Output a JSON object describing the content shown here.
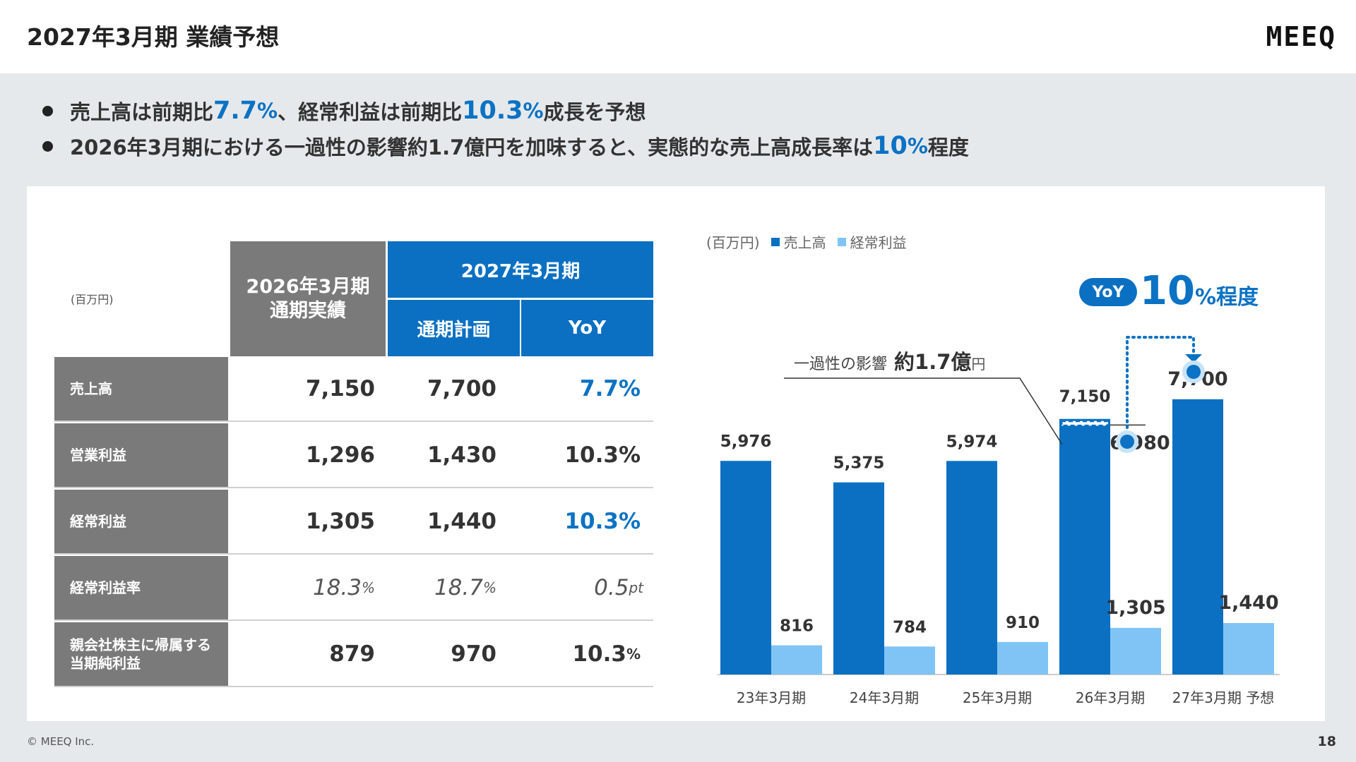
{
  "header": {
    "title": "2027年3月期 業績予想",
    "logo": "MEEQ"
  },
  "bullets": [
    {
      "a": "売上高は前期比",
      "b": "7.7",
      "c": "%",
      "d": " 、経常利益は前期比",
      "e": "10.3",
      "f": "%",
      "g": "成長を予想"
    },
    {
      "a": "2026年3月期における一過性の影響約1.7億円を加味すると、実態的な売上高成長率は",
      "b": "10",
      "c": "%",
      "d": "程度"
    }
  ],
  "table": {
    "unit": "(百万円)",
    "header_2026_l1": "2026年3月期",
    "header_2026_l2": "通期実績",
    "header_2027": "2027年3月期",
    "header_plan": "通期計画",
    "header_yoy": "YoY",
    "rows": [
      {
        "label": "売上高",
        "actual": "7,150",
        "plan": "7,700",
        "yoy": "7.7%"
      },
      {
        "label": "営業利益",
        "actual": "1,296",
        "plan": "1,430",
        "yoy": "10.3%"
      },
      {
        "label": "経常利益",
        "actual": "1,305",
        "plan": "1,440",
        "yoy": "10.3%"
      },
      {
        "label": "経常利益率",
        "actual": "18.3",
        "actual_unit": "%",
        "plan": "18.7",
        "plan_unit": "%",
        "yoy": "0.5",
        "yoy_unit": "pt"
      },
      {
        "label_l1": "親会社株主に帰属する",
        "label_l2": "当期純利益",
        "actual": "879",
        "plan": "970",
        "yoy": "10.3",
        "yoy_unit": "%"
      }
    ]
  },
  "chart_legend": {
    "unit": "(百万円)",
    "sales": "売上高",
    "ordinary": "経常利益"
  },
  "callouts": {
    "yoy_badge": "YoY",
    "yoy_num": "10",
    "yoy_suffix": "%程度",
    "onetime_label": "一過性の影響",
    "onetime_value": "約1.7億",
    "onetime_unit": "円",
    "adjusted_value": "6,980"
  },
  "chart_data": {
    "type": "bar",
    "categories": [
      "23年3月期",
      "24年3月期",
      "25年3月期",
      "26年3月期",
      "27年3月期 予想"
    ],
    "series": [
      {
        "name": "売上高",
        "values": [
          5976,
          5375,
          5974,
          7150,
          7700
        ],
        "labels": [
          "5,976",
          "5,375",
          "5,974",
          "7,150",
          "7,700"
        ]
      },
      {
        "name": "経常利益",
        "values": [
          816,
          784,
          910,
          1305,
          1440
        ],
        "labels": [
          "816",
          "784",
          "910",
          "1,305",
          "1,440"
        ]
      }
    ],
    "ylim": [
      0,
      9000
    ],
    "colors": {
      "sales": "#0b70c2",
      "ordinary": "#80c4f5",
      "accent": "#0b72c4"
    }
  },
  "footer": {
    "copyright": "© MEEQ Inc.",
    "page": "18"
  }
}
